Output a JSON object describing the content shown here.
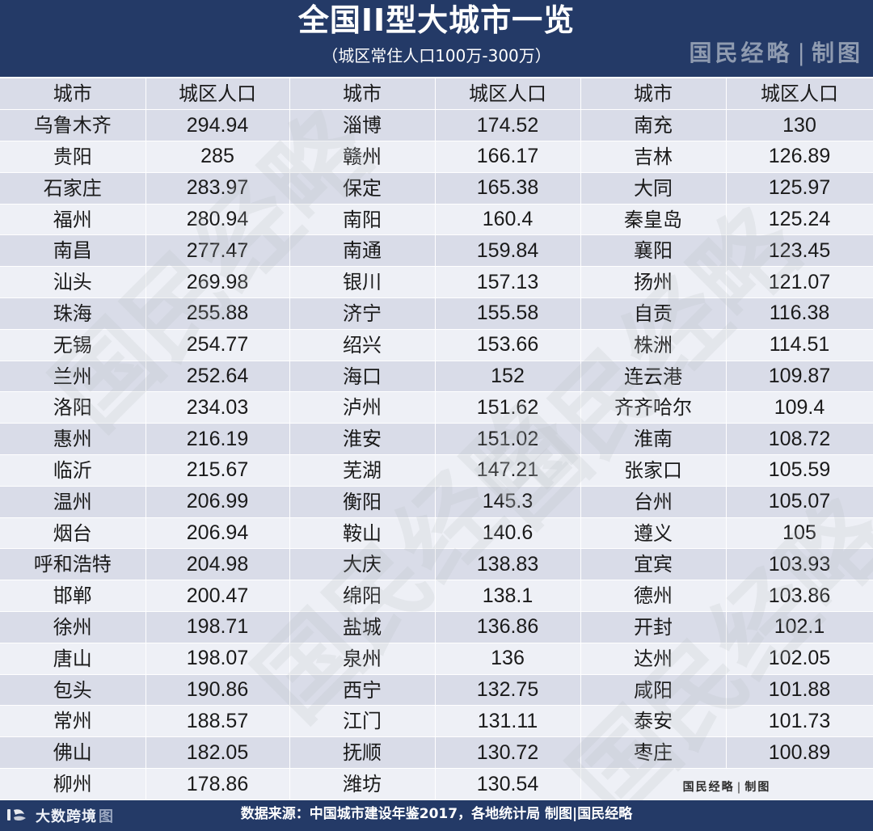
{
  "header": {
    "title": "全国II型大城市一览",
    "subtitle": "（城区常住人口100万-300万）",
    "brand_left": "国民经略",
    "brand_sep": "|",
    "brand_right": "制图"
  },
  "table": {
    "headers": [
      "城市",
      "城区人口",
      "城市",
      "城区人口",
      "城市",
      "城区人口"
    ],
    "rows": [
      [
        "乌鲁木齐",
        "294.94",
        "淄博",
        "174.52",
        "南充",
        "130"
      ],
      [
        "贵阳",
        "285",
        "赣州",
        "166.17",
        "吉林",
        "126.89"
      ],
      [
        "石家庄",
        "283.97",
        "保定",
        "165.38",
        "大同",
        "125.97"
      ],
      [
        "福州",
        "280.94",
        "南阳",
        "160.4",
        "秦皇岛",
        "125.24"
      ],
      [
        "南昌",
        "277.47",
        "南通",
        "159.84",
        "襄阳",
        "123.45"
      ],
      [
        "汕头",
        "269.98",
        "银川",
        "157.13",
        "扬州",
        "121.07"
      ],
      [
        "珠海",
        "255.88",
        "济宁",
        "155.58",
        "自贡",
        "116.38"
      ],
      [
        "无锡",
        "254.77",
        "绍兴",
        "153.66",
        "株洲",
        "114.51"
      ],
      [
        "兰州",
        "252.64",
        "海口",
        "152",
        "连云港",
        "109.87"
      ],
      [
        "洛阳",
        "234.03",
        "泸州",
        "151.62",
        "齐齐哈尔",
        "109.4"
      ],
      [
        "惠州",
        "216.19",
        "淮安",
        "151.02",
        "淮南",
        "108.72"
      ],
      [
        "临沂",
        "215.67",
        "芜湖",
        "147.21",
        "张家口",
        "105.59"
      ],
      [
        "温州",
        "206.99",
        "衡阳",
        "145.3",
        "台州",
        "105.07"
      ],
      [
        "烟台",
        "206.94",
        "鞍山",
        "140.6",
        "遵义",
        "105"
      ],
      [
        "呼和浩特",
        "204.98",
        "大庆",
        "138.83",
        "宜宾",
        "103.93"
      ],
      [
        "邯郸",
        "200.47",
        "绵阳",
        "138.1",
        "德州",
        "103.86"
      ],
      [
        "徐州",
        "198.71",
        "盐城",
        "136.86",
        "开封",
        "102.1"
      ],
      [
        "唐山",
        "198.07",
        "泉州",
        "136",
        "达州",
        "102.05"
      ],
      [
        "包头",
        "190.86",
        "西宁",
        "132.75",
        "咸阳",
        "101.88"
      ],
      [
        "常州",
        "188.57",
        "江门",
        "131.11",
        "泰安",
        "101.73"
      ],
      [
        "佛山",
        "182.05",
        "抚顺",
        "130.72",
        "枣庄",
        "100.89"
      ]
    ],
    "last_row": {
      "city1": "柳州",
      "pop1": "178.86",
      "city2": "潍坊",
      "pop2": "130.54",
      "stamp_left": "国民经略",
      "stamp_sep": "|",
      "stamp_right": "制图"
    }
  },
  "watermark": {
    "text": "国民经略"
  },
  "footer": {
    "source": "数据来源：中国城市建设年鉴2017，各地统计局 制图|国民经略",
    "logo_text": "大数跨境",
    "ghost_text": "图"
  }
}
